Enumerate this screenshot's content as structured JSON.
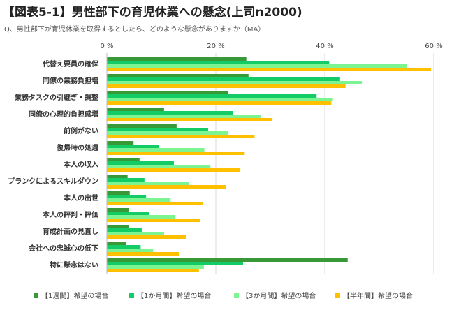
{
  "chart_data": {
    "type": "hbar",
    "title": "【図表5-1】男性部下の育児休業への懸念(上司n2000)",
    "subtitle": "Q、男性部下が育児休業を取得するとしたら、どのような懸念がありますか（MA）",
    "categories": [
      "代替え要員の確保",
      "同僚の業務負担増",
      "業務タスクの引継ぎ・調整",
      "同僚の心理的負担感増",
      "前例がない",
      "復帰時の処遇",
      "本人の収入",
      "ブランクによるスキルダウン",
      "本人の出世",
      "本人の評判・評価",
      "育成計画の見直し",
      "会社への忠誠心の低下",
      "特に懸念はない"
    ],
    "series": [
      {
        "name": "【1週間】希望の場合",
        "color": "#379a37",
        "values": [
          25.6,
          26.0,
          22.3,
          10.5,
          12.8,
          4.9,
          6.0,
          3.8,
          4.2,
          4.0,
          4.0,
          3.5,
          44.2
        ]
      },
      {
        "name": "【1か月間】希望の場合",
        "color": "#14cc66",
        "values": [
          40.8,
          42.8,
          38.5,
          23.1,
          18.6,
          9.6,
          12.3,
          6.9,
          7.2,
          7.7,
          6.4,
          6.2,
          25.0
        ]
      },
      {
        "name": "【3か月間】希望の場合",
        "color": "#7cf492",
        "values": [
          55.1,
          46.8,
          41.5,
          28.2,
          22.2,
          17.9,
          19.0,
          15.0,
          11.7,
          12.6,
          10.5,
          8.5,
          17.8
        ]
      },
      {
        "name": "【半年間】希望の場合",
        "color": "#ffc000",
        "values": [
          59.5,
          43.8,
          41.2,
          30.4,
          27.1,
          25.3,
          24.5,
          21.9,
          17.7,
          17.1,
          14.5,
          13.2,
          16.9
        ]
      }
    ],
    "xlim": [
      0,
      60
    ],
    "xticks": [
      {
        "value": 0,
        "label": "0 %"
      },
      {
        "value": 20,
        "label": "20 %"
      },
      {
        "value": 40,
        "label": "40 %"
      },
      {
        "value": 60,
        "label": "60 %"
      }
    ],
    "grid": true
  }
}
